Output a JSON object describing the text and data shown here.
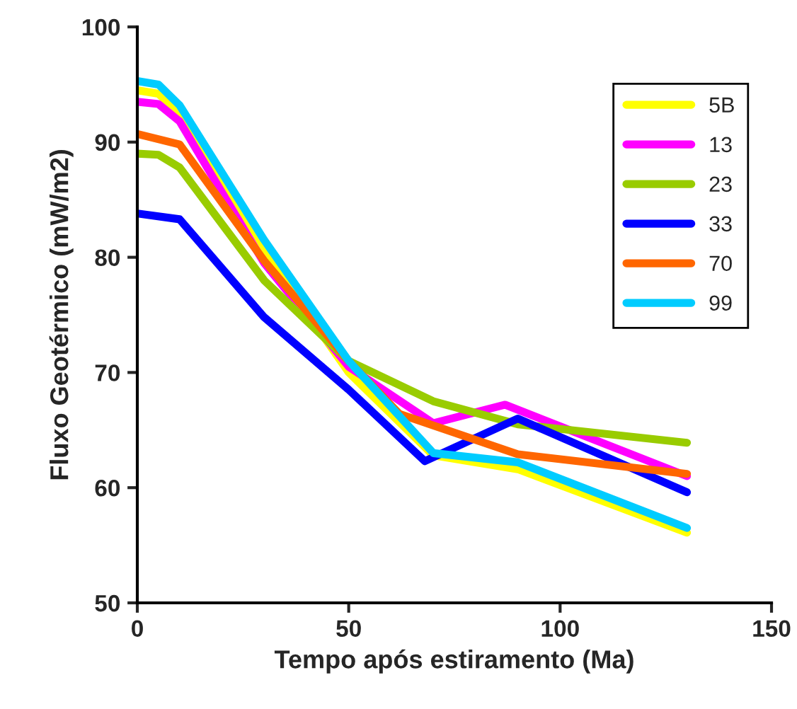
{
  "chart_data": {
    "type": "line",
    "xlabel": "Tempo após estiramento (Ma)",
    "ylabel": "Fluxo Geotérmico (mW/m2)",
    "xlim": [
      0,
      150
    ],
    "xticks": [
      0,
      50,
      100,
      150
    ],
    "ylim": [
      50,
      100
    ],
    "yticks": [
      50,
      60,
      70,
      80,
      90,
      100
    ],
    "grid": false,
    "legend": "top right",
    "marker": "none",
    "line_style": "solid",
    "series": [
      {
        "name": "5B",
        "color": "#ffff00",
        "x": [
          0,
          5,
          10,
          30,
          50,
          70,
          90,
          130
        ],
        "values": [
          94.5,
          94.2,
          92.5,
          80.5,
          70,
          62.8,
          61.6,
          56.1
        ]
      },
      {
        "name": "13",
        "color": "#ff00ff",
        "x": [
          0,
          5,
          10,
          30,
          50,
          70,
          87,
          130
        ],
        "values": [
          93.5,
          93.3,
          91.8,
          79.5,
          70.5,
          65.6,
          67.2,
          61
        ]
      },
      {
        "name": "23",
        "color": "#99cc00",
        "x": [
          0,
          5,
          10,
          30,
          50,
          70,
          90,
          130
        ],
        "values": [
          89,
          88.9,
          87.8,
          78,
          71,
          67.5,
          65.5,
          63.9
        ]
      },
      {
        "name": "33",
        "color": "#0000ff",
        "x": [
          0,
          10,
          30,
          50,
          68,
          90,
          130
        ],
        "values": [
          83.8,
          83.3,
          74.8,
          68.5,
          62.3,
          66,
          59.6
        ]
      },
      {
        "name": "70",
        "color": "#ff6600",
        "x": [
          0,
          10,
          30,
          50,
          62,
          90,
          130
        ],
        "values": [
          90.7,
          89.8,
          79.7,
          71,
          66.4,
          62.9,
          61.2
        ]
      },
      {
        "name": "99",
        "color": "#00ccff",
        "x": [
          0,
          5,
          10,
          30,
          50,
          70,
          90,
          130
        ],
        "values": [
          95.3,
          95,
          93.2,
          81.5,
          71,
          63,
          62.2,
          56.5
        ]
      }
    ]
  }
}
